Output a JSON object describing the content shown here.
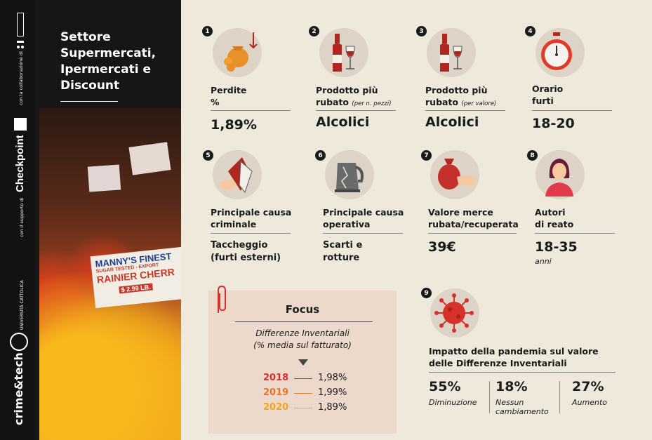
{
  "sidebar": {
    "title_lines": [
      "Settore",
      "Supermercati,",
      "Ipermercati e",
      "Discount"
    ],
    "collab_text": "con la collaborazione di",
    "support_text": "con il supporto di",
    "brand_checkpoint": "Checkpoint",
    "brand_crimetech": "crime&tech",
    "university": "UNIVERSITÀ CATTOLICA",
    "photo_sign_lines": [
      "MANNY'S FINEST",
      "SUGAR TESTED - EXPORT",
      "RAINIER CHERR",
      "$ 2.99 LB."
    ]
  },
  "items": [
    {
      "num": "1",
      "label_lines": [
        "Perdite",
        "%"
      ],
      "note": "",
      "value": "1,89%"
    },
    {
      "num": "2",
      "label_lines": [
        "Prodotto più",
        "rubato"
      ],
      "note": "(per n. pezzi)",
      "value": "Alcolici"
    },
    {
      "num": "3",
      "label_lines": [
        "Prodotto più",
        "rubato"
      ],
      "note": "(per valore)",
      "value": "Alcolici"
    },
    {
      "num": "4",
      "label_lines": [
        "Orario",
        "furti"
      ],
      "note": "",
      "value": "18-20"
    },
    {
      "num": "5",
      "label_lines": [
        "Principale causa",
        "criminale"
      ],
      "note": "",
      "value_lines": [
        "Taccheggio",
        "(furti esterni)"
      ]
    },
    {
      "num": "6",
      "label_lines": [
        "Principale causa",
        "operativa"
      ],
      "note": "",
      "value_lines": [
        "Scarti e",
        "rotture"
      ]
    },
    {
      "num": "7",
      "label_lines": [
        "Valore merce",
        "rubata/recuperata"
      ],
      "note": "",
      "value": "39€"
    },
    {
      "num": "8",
      "label_lines": [
        "Autori",
        "di reato"
      ],
      "note": "",
      "value": "18-35",
      "value_note": "anni"
    }
  ],
  "focus": {
    "title": "Focus",
    "subtitle_lines": [
      "Differenze Inventariali",
      "(% media sul fatturato)"
    ],
    "rows": [
      {
        "year": "2018",
        "value": "1,98%",
        "color": "#d6312b"
      },
      {
        "year": "2019",
        "value": "1,99%",
        "color": "#e8732a"
      },
      {
        "year": "2020",
        "value": "1,89%",
        "color": "#f2a42a"
      }
    ]
  },
  "pandemic": {
    "num": "9",
    "title_lines": [
      "Impatto della pandemia sul valore",
      "delle Differenze Inventariali"
    ],
    "stats": [
      {
        "value": "55%",
        "label_lines": [
          "Diminuzione"
        ]
      },
      {
        "value": "18%",
        "label_lines": [
          "Nessun",
          "cambiamento"
        ]
      },
      {
        "value": "27%",
        "label_lines": [
          "Aumento"
        ]
      }
    ]
  },
  "colors": {
    "accent_red": "#d6312b",
    "background": "#efe9dc",
    "sidebar": "#161616"
  }
}
